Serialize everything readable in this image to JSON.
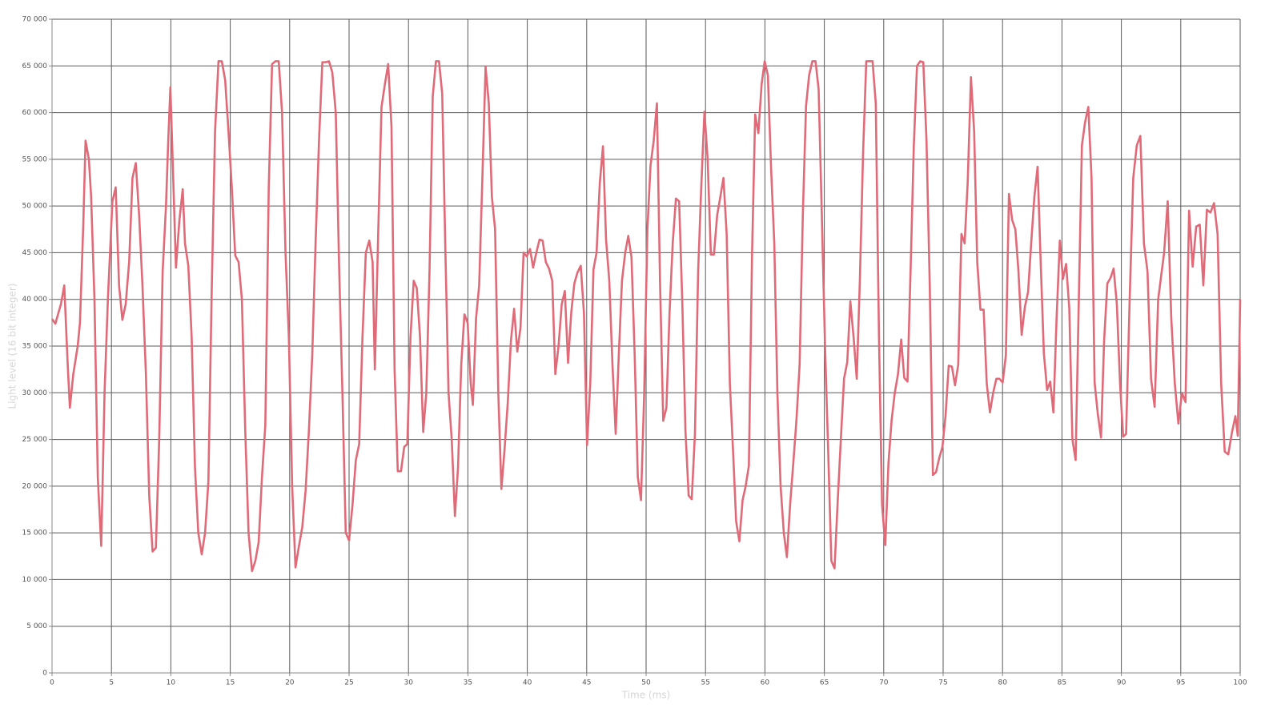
{
  "chart_data": {
    "type": "line",
    "x_label": "Time (ms)",
    "y_label": "Light level (16 bit integer)",
    "color": "#e06a78",
    "grid": true,
    "xlim": [
      0,
      100
    ],
    "xticks": [
      0,
      5,
      10,
      15,
      20,
      25,
      30,
      35,
      40,
      45,
      50,
      55,
      60,
      65,
      70,
      75,
      80,
      85,
      90,
      95,
      100
    ],
    "ylim": [
      0,
      70000
    ],
    "yticks": [
      {
        "value": 0,
        "label": "0"
      },
      {
        "value": 5000,
        "label": "5 000"
      },
      {
        "value": 10000,
        "label": "10 000"
      },
      {
        "value": 15000,
        "label": "15 000"
      },
      {
        "value": 20000,
        "label": "20 000"
      },
      {
        "value": 25000,
        "label": "25 000"
      },
      {
        "value": 30000,
        "label": "30 000"
      },
      {
        "value": 35000,
        "label": "35 000"
      },
      {
        "value": 40000,
        "label": "40 000"
      },
      {
        "value": 45000,
        "label": "45 000"
      },
      {
        "value": 50000,
        "label": "50 000"
      },
      {
        "value": 55000,
        "label": "55 000"
      },
      {
        "value": 60000,
        "label": "60 000"
      },
      {
        "value": 65000,
        "label": "65 000"
      },
      {
        "value": 70000,
        "label": "70 000"
      }
    ],
    "x": [
      0,
      0.28,
      0.75,
      1.03,
      1.32,
      1.5,
      1.79,
      2.16,
      2.35,
      2.63,
      2.82,
      3.1,
      3.29,
      3.57,
      3.85,
      4.14,
      4.42,
      4.7,
      5.08,
      5.36,
      5.64,
      5.92,
      6.2,
      6.49,
      6.77,
      7.05,
      7.33,
      7.61,
      7.9,
      8.18,
      8.46,
      8.74,
      9.02,
      9.31,
      9.59,
      9.78,
      9.96,
      10.15,
      10.43,
      10.72,
      11,
      11.19,
      11.47,
      11.75,
      12.03,
      12.31,
      12.6,
      12.88,
      13.16,
      13.44,
      13.72,
      14.01,
      14.29,
      14.57,
      14.85,
      15.13,
      15.42,
      15.7,
      15.98,
      16.26,
      16.54,
      16.83,
      17.11,
      17.39,
      17.67,
      17.95,
      18.24,
      18.52,
      18.8,
      19.08,
      19.36,
      19.65,
      19.93,
      20.21,
      20.49,
      20.77,
      21.06,
      21.34,
      21.62,
      21.9,
      22.18,
      22.47,
      22.75,
      23.03,
      23.31,
      23.59,
      23.88,
      24.16,
      24.44,
      24.72,
      25,
      25.29,
      25.57,
      25.85,
      26.13,
      26.41,
      26.7,
      26.98,
      27.17,
      27.45,
      27.73,
      28.01,
      28.29,
      28.57,
      28.83,
      29.1,
      29.37,
      29.64,
      29.9,
      30.17,
      30.44,
      30.7,
      30.97,
      31.24,
      31.5,
      31.77,
      32.04,
      32.31,
      32.57,
      32.84,
      33.11,
      33.37,
      33.64,
      33.91,
      34.17,
      34.44,
      34.71,
      34.98,
      35.24,
      35.42,
      35.69,
      35.95,
      36.22,
      36.49,
      36.76,
      37.02,
      37.29,
      37.56,
      37.82,
      38.09,
      38.36,
      38.62,
      38.89,
      39.16,
      39.43,
      39.69,
      39.96,
      40.23,
      40.49,
      40.76,
      41.03,
      41.29,
      41.56,
      41.83,
      42.1,
      42.36,
      42.63,
      42.9,
      43.16,
      43.43,
      43.7,
      43.96,
      44.23,
      44.5,
      44.77,
      45.03,
      45.3,
      45.57,
      45.83,
      46.1,
      46.37,
      46.63,
      46.9,
      47.17,
      47.44,
      47.7,
      47.97,
      48.24,
      48.5,
      48.77,
      49.04,
      49.3,
      49.57,
      49.84,
      50.11,
      50.37,
      50.64,
      50.91,
      51.17,
      51.44,
      51.71,
      51.97,
      52.24,
      52.51,
      52.78,
      53.04,
      53.31,
      53.58,
      53.84,
      54.11,
      54.38,
      54.64,
      54.91,
      55.18,
      55.45,
      55.71,
      55.98,
      56.25,
      56.51,
      56.78,
      57.05,
      57.31,
      57.58,
      57.85,
      58.12,
      58.38,
      58.65,
      58.92,
      59.18,
      59.45,
      59.72,
      59.98,
      60.25,
      60.52,
      60.79,
      61.05,
      61.32,
      61.59,
      61.85,
      62.12,
      62.39,
      62.65,
      62.92,
      63.19,
      63.46,
      63.72,
      63.99,
      64.26,
      64.52,
      64.79,
      65.06,
      65.32,
      65.59,
      65.86,
      66.13,
      66.39,
      66.66,
      66.93,
      67.19,
      67.46,
      67.73,
      67.99,
      68.26,
      68.53,
      68.8,
      69.06,
      69.33,
      69.6,
      69.86,
      70.13,
      70.4,
      70.66,
      70.93,
      71.2,
      71.47,
      71.73,
      72,
      72.27,
      72.53,
      72.8,
      73.07,
      73.33,
      73.6,
      73.87,
      74.14,
      74.4,
      74.67,
      74.94,
      75.2,
      75.47,
      75.74,
      76,
      76.27,
      76.54,
      76.81,
      77.07,
      77.34,
      77.61,
      77.87,
      78.14,
      78.41,
      78.67,
      78.94,
      79.21,
      79.48,
      79.74,
      80.01,
      80.28,
      80.54,
      80.81,
      81.08,
      81.34,
      81.61,
      81.88,
      82.15,
      82.41,
      82.68,
      82.95,
      83.21,
      83.48,
      83.75,
      84.01,
      84.28,
      84.55,
      84.82,
      85.08,
      85.35,
      85.62,
      85.88,
      86.15,
      86.42,
      86.68,
      86.95,
      87.22,
      87.49,
      87.75,
      88.02,
      88.29,
      88.55,
      88.82,
      89.09,
      89.35,
      89.62,
      89.89,
      90.15,
      90.4,
      90.7,
      91,
      91.3,
      91.6,
      91.9,
      92.2,
      92.5,
      92.8,
      93.1,
      93.6,
      93.9,
      94.2,
      94.5,
      94.8,
      95.1,
      95.4,
      95.7,
      96,
      96.3,
      96.6,
      96.9,
      97.2,
      97.5,
      97.8,
      98.1,
      98.4,
      98.7,
      99,
      99.3,
      99.6,
      99.8,
      100
    ],
    "values": [
      37900,
      37400,
      39500,
      41500,
      33000,
      28400,
      32000,
      35000,
      37500,
      48000,
      57000,
      55000,
      51000,
      40000,
      21000,
      13600,
      30000,
      40000,
      50500,
      52000,
      41500,
      37800,
      39500,
      44000,
      53000,
      54600,
      49000,
      41500,
      32000,
      19000,
      13000,
      13400,
      25000,
      43000,
      50000,
      57000,
      62700,
      55000,
      43400,
      48500,
      51800,
      46000,
      43600,
      36000,
      22000,
      15000,
      12700,
      15000,
      20500,
      41000,
      58000,
      65500,
      65500,
      63500,
      58000,
      52000,
      44700,
      44000,
      40000,
      26000,
      15000,
      10900,
      12000,
      14000,
      21000,
      26500,
      52000,
      65200,
      65500,
      65500,
      60000,
      45000,
      36000,
      20000,
      11300,
      13500,
      15600,
      19500,
      26000,
      34000,
      46000,
      57000,
      65400,
      65400,
      65500,
      64300,
      60000,
      43700,
      30000,
      15000,
      14200,
      18000,
      22800,
      24500,
      36000,
      45000,
      46300,
      44000,
      32500,
      47000,
      60600,
      63000,
      65200,
      58500,
      32500,
      21600,
      21600,
      24200,
      24500,
      36000,
      42000,
      41200,
      36000,
      25800,
      30000,
      43000,
      61700,
      65500,
      65500,
      62000,
      45000,
      30000,
      25000,
      16800,
      22000,
      33000,
      38400,
      37500,
      31000,
      28700,
      38000,
      41500,
      53000,
      64900,
      61000,
      51000,
      47500,
      30000,
      19700,
      24000,
      29000,
      35500,
      39000,
      34400,
      37000,
      45000,
      44600,
      45400,
      43400,
      45000,
      46400,
      46300,
      44000,
      43300,
      42000,
      32000,
      35000,
      39500,
      40900,
      33200,
      38600,
      41700,
      42900,
      43600,
      38500,
      24400,
      31000,
      43200,
      45000,
      52400,
      56400,
      46400,
      42000,
      33000,
      25600,
      34000,
      42000,
      45000,
      46800,
      44500,
      34000,
      21000,
      18500,
      30000,
      47500,
      54300,
      57000,
      61000,
      42000,
      27000,
      28400,
      38500,
      46000,
      50800,
      50500,
      40000,
      26000,
      19000,
      18600,
      25600,
      43000,
      52000,
      60100,
      55000,
      44800,
      44800,
      49000,
      51000,
      53000,
      47000,
      31000,
      24000,
      16200,
      14100,
      18500,
      20000,
      22200,
      45000,
      59800,
      57800,
      63000,
      65500,
      64000,
      54000,
      46000,
      30000,
      20000,
      15000,
      12400,
      18000,
      22500,
      27000,
      33000,
      49000,
      60700,
      64000,
      65500,
      65500,
      62500,
      49000,
      35000,
      24000,
      12000,
      11200,
      18500,
      25000,
      31500,
      33300,
      39800,
      36000,
      31500,
      42000,
      55600,
      65500,
      65500,
      65500,
      61000,
      36000,
      18000,
      13700,
      22500,
      27000,
      30000,
      32000,
      35700,
      31600,
      31200,
      43600,
      56400,
      65000,
      65500,
      65400,
      57000,
      41700,
      21200,
      21500,
      23000,
      24200,
      27500,
      32900,
      32800,
      30800,
      33000,
      47000,
      46000,
      52600,
      63800,
      58000,
      44000,
      38900,
      38900,
      31000,
      27900,
      30000,
      31500,
      31500,
      31100,
      34000,
      51300,
      48500,
      47500,
      43000,
      36200,
      39200,
      40800,
      46000,
      51000,
      54200,
      44000,
      34200,
      30300,
      31200,
      27900,
      38000,
      46300,
      42200,
      43800,
      39000,
      25000,
      22800,
      40000,
      56500,
      59000,
      60600,
      53000,
      31100,
      27700,
      25200,
      35600,
      41700,
      42300,
      43300,
      39500,
      31000,
      25300,
      25600,
      40000,
      53000,
      56500,
      57500,
      46000,
      43000,
      31500,
      28500,
      40000,
      45000,
      50500,
      38000,
      31000,
      26700,
      30000,
      29000,
      49500,
      43500,
      47800,
      48000,
      41500,
      49600,
      49300,
      50300,
      47000,
      31000,
      23700,
      23400,
      25700,
      27500,
      25400,
      40000
    ]
  }
}
